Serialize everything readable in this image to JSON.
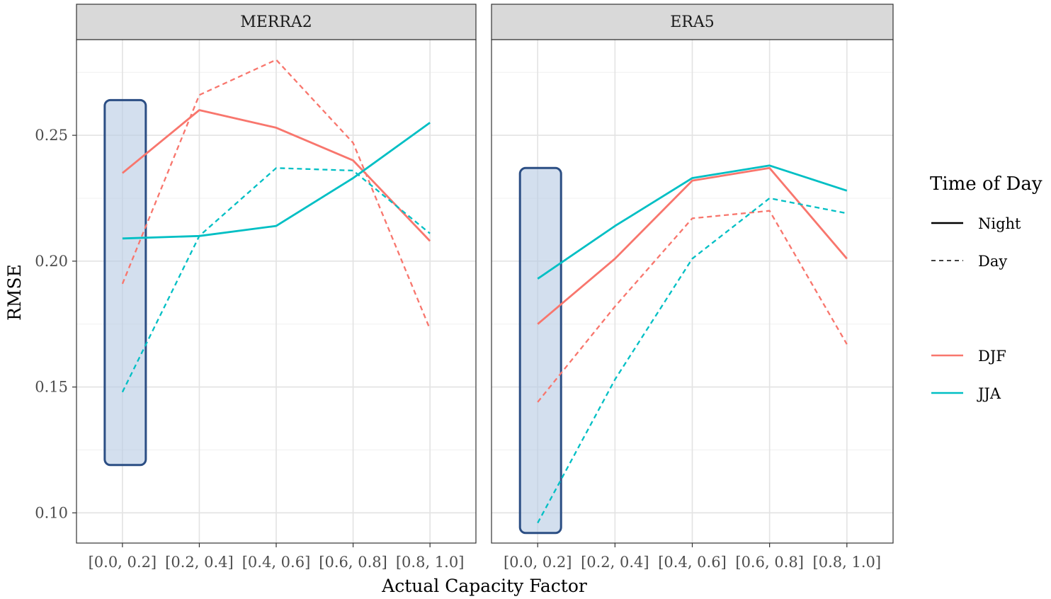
{
  "chart_data": {
    "type": "line",
    "xlabel": "Actual Capacity Factor",
    "ylabel": "RMSE",
    "categories": [
      "[0.0, 0.2]",
      "[0.2, 0.4]",
      "[0.4, 0.6]",
      "[0.6, 0.8]",
      "[0.8, 1.0]"
    ],
    "ylim": [
      0.088,
      0.288
    ],
    "yticks": [
      0.1,
      0.15,
      0.2,
      0.25
    ],
    "ytick_labels": [
      "0.10",
      "0.15",
      "0.20",
      "0.25"
    ],
    "grid": true,
    "legend_position": "right",
    "colors": {
      "DJF": "#F8766D",
      "JJA": "#00BFC4",
      "highlight_fill": "#b8cbe4",
      "highlight_stroke": "#2b4e84"
    },
    "legend": {
      "linetype_title": "Time of Day",
      "linetype_items": [
        {
          "label": "Night",
          "dash": "solid"
        },
        {
          "label": "Day",
          "dash": "dashed"
        }
      ],
      "color_items": [
        {
          "label": "DJF",
          "color": "#F8766D"
        },
        {
          "label": "JJA",
          "color": "#00BFC4"
        }
      ]
    },
    "panels": [
      {
        "label": "MERRA2",
        "highlight_category": "[0.0, 0.2]",
        "highlight_range": [
          0.119,
          0.264
        ],
        "series": [
          {
            "season": "DJF",
            "time": "Night",
            "values": [
              0.235,
              0.26,
              0.253,
              0.24,
              0.208
            ]
          },
          {
            "season": "DJF",
            "time": "Day",
            "values": [
              0.191,
              0.266,
              0.28,
              0.247,
              0.173
            ]
          },
          {
            "season": "JJA",
            "time": "Night",
            "values": [
              0.209,
              0.21,
              0.214,
              0.233,
              0.255
            ]
          },
          {
            "season": "JJA",
            "time": "Day",
            "values": [
              0.148,
              0.21,
              0.237,
              0.236,
              0.211
            ]
          }
        ]
      },
      {
        "label": "ERA5",
        "highlight_category": "[0.0, 0.2]",
        "highlight_range": [
          0.092,
          0.237
        ],
        "series": [
          {
            "season": "DJF",
            "time": "Night",
            "values": [
              0.175,
              0.201,
              0.232,
              0.237,
              0.201
            ]
          },
          {
            "season": "DJF",
            "time": "Day",
            "values": [
              0.144,
              0.182,
              0.217,
              0.22,
              0.167
            ]
          },
          {
            "season": "JJA",
            "time": "Night",
            "values": [
              0.193,
              0.214,
              0.233,
              0.238,
              0.228
            ]
          },
          {
            "season": "JJA",
            "time": "Day",
            "values": [
              0.096,
              0.153,
              0.201,
              0.225,
              0.219
            ]
          }
        ]
      }
    ]
  }
}
